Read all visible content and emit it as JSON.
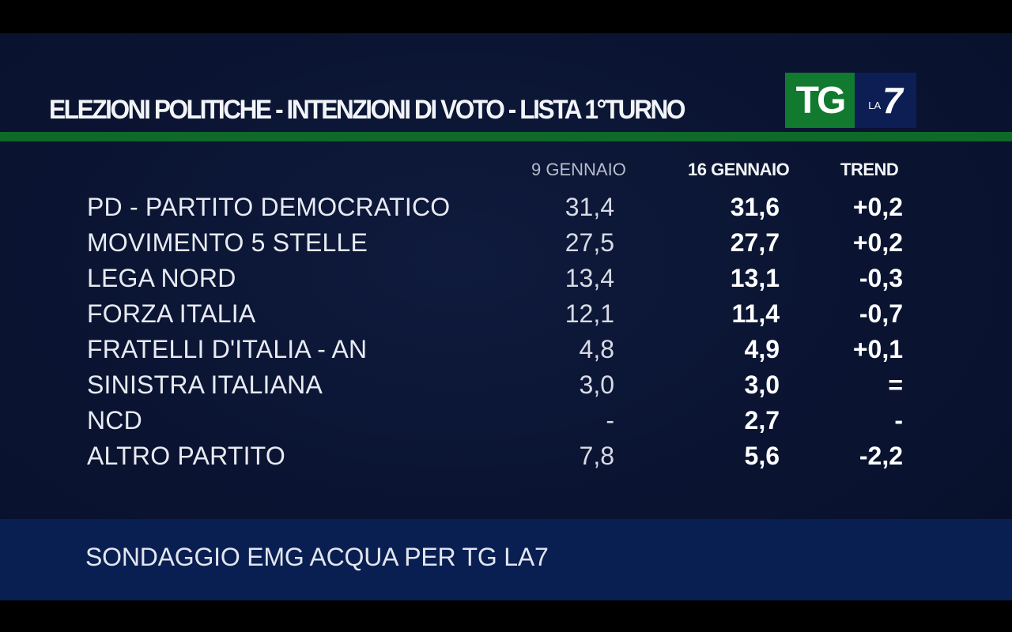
{
  "title": "ELEZIONI POLITICHE - INTENZIONI DI VOTO - LISTA 1°TURNO",
  "logo": {
    "tg": "TG",
    "la": "LA",
    "seven": "7"
  },
  "colors": {
    "green": "#0f6a2a",
    "logo_green": "#117a2e",
    "footer": "#091f52"
  },
  "columns": {
    "date1": "9 GENNAIO",
    "date2": "16 GENNAIO",
    "trend": "TREND"
  },
  "rows": [
    {
      "party": "PD - PARTITO DEMOCRATICO",
      "d1": "31,4",
      "d2": "31,6",
      "trend": "+0,2"
    },
    {
      "party": "MOVIMENTO 5 STELLE",
      "d1": "27,5",
      "d2": "27,7",
      "trend": "+0,2"
    },
    {
      "party": "LEGA NORD",
      "d1": "13,4",
      "d2": "13,1",
      "trend": "-0,3"
    },
    {
      "party": "FORZA ITALIA",
      "d1": "12,1",
      "d2": "11,4",
      "trend": "-0,7"
    },
    {
      "party": "FRATELLI D'ITALIA - AN",
      "d1": "4,8",
      "d2": "4,9",
      "trend": "+0,1"
    },
    {
      "party": "SINISTRA ITALIANA",
      "d1": "3,0",
      "d2": "3,0",
      "trend": "="
    },
    {
      "party": "NCD",
      "d1": "-",
      "d2": "2,7",
      "trend": "-"
    },
    {
      "party": "ALTRO PARTITO",
      "d1": "7,8",
      "d2": "5,6",
      "trend": "-2,2"
    }
  ],
  "source": "SONDAGGIO EMG ACQUA PER TG LA7",
  "chart_data": {
    "type": "table",
    "title": "ELEZIONI POLITICHE - INTENZIONI DI VOTO - LISTA 1°TURNO",
    "columns": [
      "9 GENNAIO",
      "16 GENNAIO",
      "TREND"
    ],
    "categories": [
      "PD - PARTITO DEMOCRATICO",
      "MOVIMENTO 5 STELLE",
      "LEGA NORD",
      "FORZA ITALIA",
      "FRATELLI D'ITALIA - AN",
      "SINISTRA ITALIANA",
      "NCD",
      "ALTRO PARTITO"
    ],
    "series": [
      {
        "name": "9 GENNAIO",
        "values": [
          31.4,
          27.5,
          13.4,
          12.1,
          4.8,
          3.0,
          null,
          7.8
        ]
      },
      {
        "name": "16 GENNAIO",
        "values": [
          31.6,
          27.7,
          13.1,
          11.4,
          4.9,
          3.0,
          2.7,
          5.6
        ]
      },
      {
        "name": "TREND",
        "values": [
          0.2,
          0.2,
          -0.3,
          -0.7,
          0.1,
          0,
          null,
          -2.2
        ]
      }
    ]
  }
}
